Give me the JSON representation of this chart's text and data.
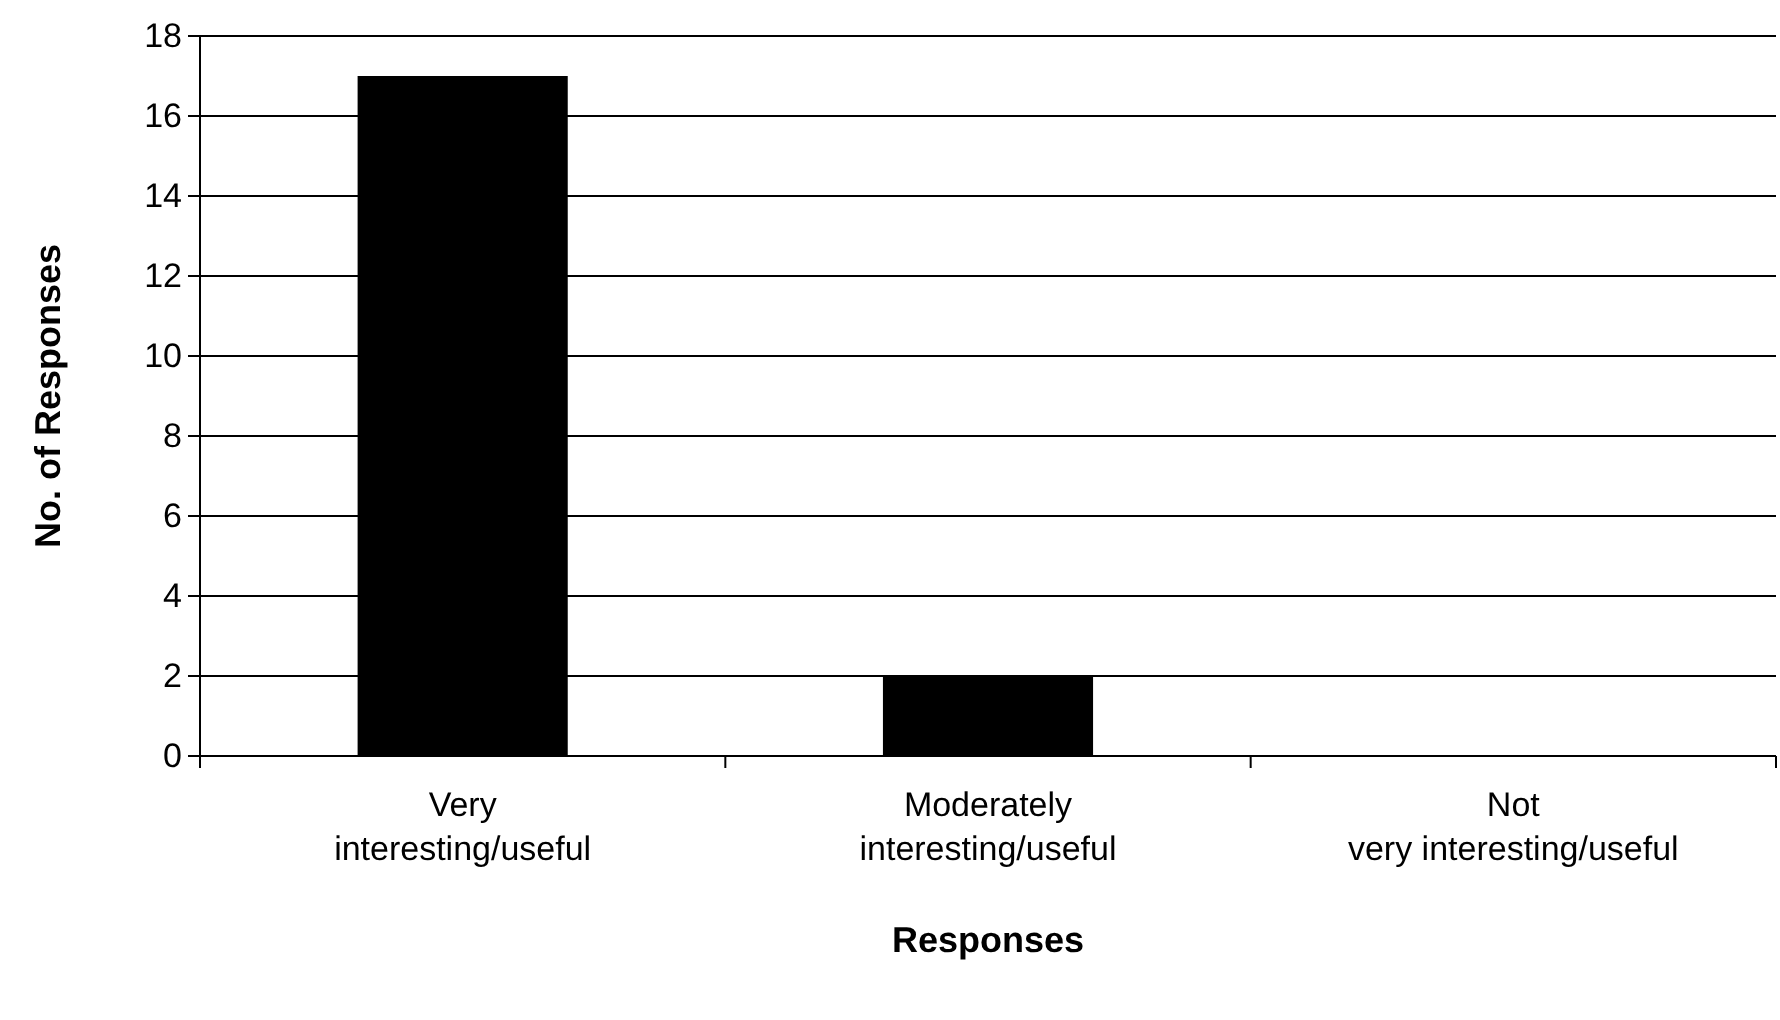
{
  "chart_data": {
    "type": "bar",
    "xlabel": "Responses",
    "ylabel": "No. of Responses",
    "categories": [
      "Very interesting/useful",
      "Moderately interesting/useful",
      "Not very interesting/useful"
    ],
    "values": [
      17,
      2,
      0
    ],
    "color": "#000000",
    "ylim": [
      0,
      18
    ],
    "yticks": [
      0,
      2,
      4,
      6,
      8,
      10,
      12,
      14,
      16,
      18
    ],
    "grid": "y"
  }
}
